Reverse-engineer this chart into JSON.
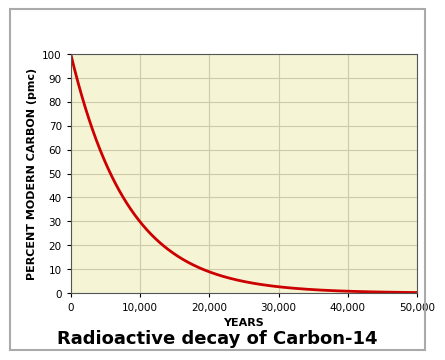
{
  "title": "Radioactive decay of Carbon-14",
  "xlabel": "YEARS",
  "ylabel": "PERCENT MODERN CARBON (pmc)",
  "xlim": [
    0,
    50000
  ],
  "ylim": [
    0,
    100
  ],
  "xticks": [
    0,
    10000,
    20000,
    30000,
    40000,
    50000
  ],
  "xtick_labels": [
    "0",
    "10,000",
    "20,000",
    "30,000",
    "40,000",
    "50,000"
  ],
  "yticks": [
    0,
    10,
    20,
    30,
    40,
    50,
    60,
    70,
    80,
    90,
    100
  ],
  "half_life": 5730,
  "line_color": "#cc0000",
  "line_width": 2.0,
  "plot_bg_color": "#f5f5d5",
  "fig_bg_color": "#ffffff",
  "title_fontsize": 13,
  "axis_label_fontsize": 8,
  "tick_fontsize": 7.5,
  "grid_color": "#ccccaa",
  "border_color": "#aaaaaa"
}
